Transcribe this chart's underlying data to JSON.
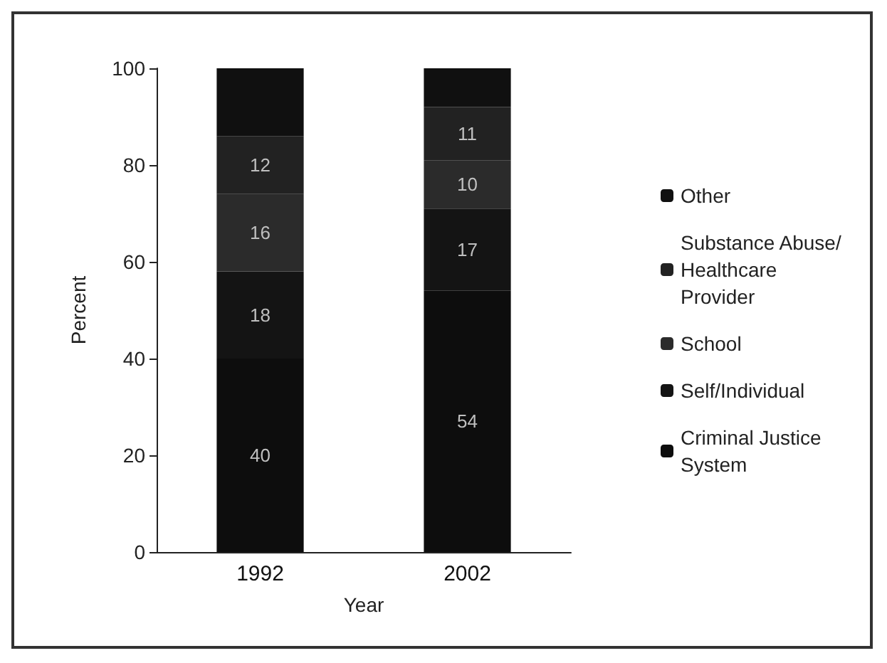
{
  "chart_data": {
    "type": "bar",
    "stacked": true,
    "categories": [
      "1992",
      "2002"
    ],
    "xlabel": "Year",
    "ylabel": "Percent",
    "ylim": [
      0,
      100
    ],
    "yticks": [
      0,
      20,
      40,
      60,
      80,
      100
    ],
    "grid": false,
    "legend": "right",
    "series": [
      {
        "name": "Criminal Justice System",
        "color": "#0d0d0d",
        "values": [
          40,
          54
        ],
        "value_labels": [
          "40",
          "54"
        ]
      },
      {
        "name": "Self/Individual",
        "color": "#141414",
        "values": [
          18,
          17
        ],
        "value_labels": [
          "18",
          "17"
        ]
      },
      {
        "name": "School",
        "color": "#2b2b2b",
        "values": [
          16,
          10
        ],
        "value_labels": [
          "16",
          "10"
        ]
      },
      {
        "name": "Substance Abuse/ Healthcare Provider",
        "color": "#222222",
        "values": [
          12,
          11
        ],
        "value_labels": [
          "12",
          "11"
        ]
      },
      {
        "name": "Other",
        "color": "#101010",
        "values": [
          14,
          8
        ],
        "value_labels": [
          null,
          null
        ]
      }
    ]
  }
}
